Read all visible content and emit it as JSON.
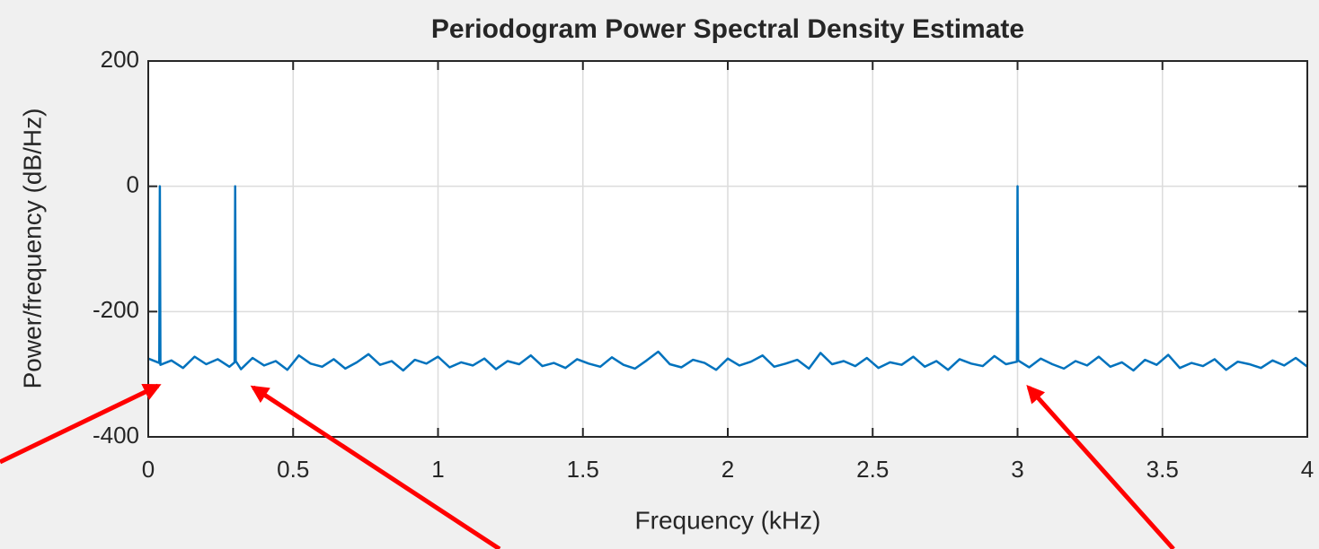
{
  "chart_data": {
    "type": "line",
    "title": "Periodogram Power Spectral Density Estimate",
    "xlabel": "Frequency (kHz)",
    "ylabel": "Power/frequency (dB/Hz)",
    "x": [
      0,
      0.038,
      0.04,
      0.042,
      0.08,
      0.12,
      0.16,
      0.2,
      0.24,
      0.28,
      0.298,
      0.3,
      0.302,
      0.32,
      0.36,
      0.4,
      0.44,
      0.48,
      0.52,
      0.56,
      0.6,
      0.64,
      0.68,
      0.72,
      0.76,
      0.8,
      0.84,
      0.88,
      0.92,
      0.96,
      1,
      1.04,
      1.08,
      1.12,
      1.16,
      1.2,
      1.24,
      1.28,
      1.32,
      1.36,
      1.4,
      1.44,
      1.48,
      1.52,
      1.56,
      1.6,
      1.64,
      1.68,
      1.72,
      1.76,
      1.8,
      1.84,
      1.88,
      1.92,
      1.96,
      2,
      2.04,
      2.08,
      2.12,
      2.16,
      2.2,
      2.24,
      2.28,
      2.32,
      2.36,
      2.4,
      2.44,
      2.48,
      2.52,
      2.56,
      2.6,
      2.64,
      2.68,
      2.72,
      2.76,
      2.8,
      2.84,
      2.88,
      2.92,
      2.96,
      2.998,
      3,
      3.002,
      3.04,
      3.08,
      3.12,
      3.16,
      3.2,
      3.24,
      3.28,
      3.32,
      3.36,
      3.4,
      3.44,
      3.48,
      3.52,
      3.56,
      3.6,
      3.64,
      3.68,
      3.72,
      3.76,
      3.8,
      3.84,
      3.88,
      3.92,
      3.96,
      4
    ],
    "series": [
      {
        "color": "#0072bd",
        "values": [
          -275,
          -282,
          0,
          -285,
          -278,
          -290,
          -272,
          -284,
          -276,
          -288,
          -281,
          0,
          -279,
          -292,
          -274,
          -286,
          -279,
          -293,
          -270,
          -283,
          -288,
          -276,
          -291,
          -281,
          -268,
          -285,
          -279,
          -294,
          -277,
          -283,
          -272,
          -289,
          -281,
          -286,
          -275,
          -292,
          -279,
          -284,
          -270,
          -287,
          -282,
          -290,
          -276,
          -283,
          -288,
          -273,
          -285,
          -291,
          -278,
          -264,
          -284,
          -289,
          -277,
          -282,
          -293,
          -275,
          -286,
          -280,
          -270,
          -288,
          -283,
          -277,
          -291,
          -266,
          -284,
          -279,
          -287,
          -274,
          -290,
          -281,
          -285,
          -272,
          -288,
          -279,
          -293,
          -276,
          -283,
          -287,
          -271,
          -284,
          -280,
          0,
          -278,
          -289,
          -275,
          -284,
          -291,
          -279,
          -286,
          -272,
          -288,
          -281,
          -294,
          -277,
          -285,
          -269,
          -290,
          -282,
          -287,
          -276,
          -293,
          -280,
          -284,
          -290,
          -278,
          -286,
          -274,
          -288
        ]
      }
    ],
    "xlim": [
      0,
      4
    ],
    "xticks": [
      0,
      0.5,
      1,
      1.5,
      2,
      2.5,
      3,
      3.5,
      4
    ],
    "ylim": [
      -400,
      200
    ],
    "yticks": [
      -400,
      -200,
      0,
      200
    ],
    "grid": true
  }
}
